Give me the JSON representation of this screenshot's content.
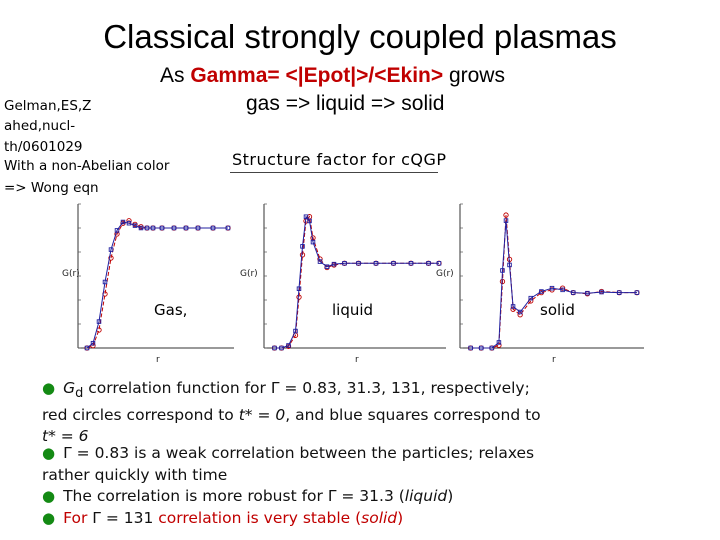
{
  "slide": {
    "title": "Classical strongly coupled plasmas",
    "subtitle_prefix": "As ",
    "subtitle_red": "Gamma= <|Epot|>/<Ekin>",
    "subtitle_suffix": " grows",
    "subtitle_line2": "gas => liquid => solid",
    "reference_lines": [
      "Gelman,ES,Z",
      "ahed,nucl-",
      "th/0601029",
      "With a non-Abelian color",
      "=> Wong eqn"
    ],
    "figure_title": "Structure factor for cQGP",
    "phase_labels": [
      "Gas,",
      "liquid",
      "solid"
    ],
    "bullets": {
      "b1_a": "G",
      "b1_sub": "d",
      "b1_b": " correlation function for Γ = 0.83, 31.3, 131, respectively;",
      "b1_c": "red circles correspond to ",
      "b1_d": "t* = 0",
      "b1_e": ", and blue squares correspond to",
      "b1_f": "t* = 6",
      "b2_a": "Γ = 0.83 is a weak correlation between the particles; relaxes",
      "b2_b": "rather quickly with time",
      "b3_a": "The correlation is more robust for Γ = 31.3 (",
      "b3_b": "liquid",
      "b3_c": ")",
      "b4_a": "For ",
      "b4_b": "Γ = 131",
      "b4_c": " correlation is very stable (",
      "b4_d": "solid",
      "b4_e": ")"
    },
    "plot_axis_labels": {
      "ylabel_left": "G(r)",
      "ylabel_mid": "G(r)",
      "ylabel_right": "G(r)",
      "xlabel": "r"
    },
    "colors": {
      "red": "#c00000",
      "blue": "#2020a0",
      "bullet": "#148a14"
    }
  },
  "chart_data": [
    {
      "type": "scatter",
      "title": "",
      "xlabel": "r",
      "ylabel": "G(r)",
      "series": [
        {
          "name": "",
          "color": "#c00000",
          "x": [
            0.3,
            0.5,
            0.7,
            0.9,
            1.1,
            1.3,
            1.5,
            1.7,
            1.9,
            2.1,
            2.3,
            2.5,
            2.8,
            3.2,
            3.6,
            4.0,
            4.5,
            5.0
          ],
          "y": [
            0.0,
            0.02,
            0.15,
            0.45,
            0.75,
            0.95,
            1.04,
            1.06,
            1.03,
            1.01,
            1.0,
            1.0,
            1.0,
            1.0,
            1.0,
            1.0,
            1.0,
            1.0
          ]
        },
        {
          "name": "",
          "color": "#2020a0",
          "x": [
            0.3,
            0.5,
            0.7,
            0.9,
            1.1,
            1.3,
            1.5,
            1.7,
            1.9,
            2.1,
            2.3,
            2.5,
            2.8,
            3.2,
            3.6,
            4.0,
            4.5,
            5.0
          ],
          "y": [
            0.0,
            0.04,
            0.22,
            0.55,
            0.82,
            0.98,
            1.05,
            1.04,
            1.02,
            1.0,
            1.0,
            1.0,
            1.0,
            1.0,
            1.0,
            1.0,
            1.0,
            1.0
          ]
        }
      ]
    },
    {
      "type": "scatter",
      "title": "",
      "xlabel": "r",
      "ylabel": "G(r)",
      "series": [
        {
          "name": "",
          "color": "#c00000",
          "x": [
            0.3,
            0.5,
            0.7,
            0.9,
            1.0,
            1.1,
            1.2,
            1.3,
            1.4,
            1.6,
            1.8,
            2.0,
            2.3,
            2.7,
            3.2,
            3.7,
            4.2,
            4.7,
            5.0
          ],
          "y": [
            0.0,
            0.0,
            0.02,
            0.15,
            0.6,
            1.1,
            1.5,
            1.55,
            1.3,
            1.05,
            0.95,
            0.98,
            1.0,
            1.0,
            1.0,
            1.0,
            1.0,
            1.0,
            1.0
          ]
        },
        {
          "name": "",
          "color": "#2020a0",
          "x": [
            0.3,
            0.5,
            0.7,
            0.9,
            1.0,
            1.1,
            1.2,
            1.3,
            1.4,
            1.6,
            1.8,
            2.0,
            2.3,
            2.7,
            3.2,
            3.7,
            4.2,
            4.7,
            5.0
          ],
          "y": [
            0.0,
            0.0,
            0.03,
            0.2,
            0.7,
            1.2,
            1.55,
            1.5,
            1.25,
            1.02,
            0.96,
            0.99,
            1.0,
            1.0,
            1.0,
            1.0,
            1.0,
            1.0,
            1.0
          ]
        }
      ]
    },
    {
      "type": "scatter",
      "title": "",
      "xlabel": "r",
      "ylabel": "G(r)",
      "series": [
        {
          "name": "",
          "color": "#c00000",
          "x": [
            0.3,
            0.6,
            0.9,
            1.1,
            1.2,
            1.3,
            1.4,
            1.5,
            1.7,
            2.0,
            2.3,
            2.6,
            2.9,
            3.2,
            3.6,
            4.0,
            4.5,
            5.0
          ],
          "y": [
            0.0,
            0.0,
            0.0,
            0.05,
            1.2,
            2.4,
            1.6,
            0.7,
            0.6,
            0.85,
            1.0,
            1.05,
            1.08,
            1.0,
            0.98,
            1.02,
            1.0,
            1.0
          ]
        },
        {
          "name": "",
          "color": "#2020a0",
          "x": [
            0.3,
            0.6,
            0.9,
            1.1,
            1.2,
            1.3,
            1.4,
            1.5,
            1.7,
            2.0,
            2.3,
            2.6,
            2.9,
            3.2,
            3.6,
            4.0,
            4.5,
            5.0
          ],
          "y": [
            0.0,
            0.0,
            0.0,
            0.1,
            1.4,
            2.3,
            1.5,
            0.75,
            0.65,
            0.9,
            1.02,
            1.08,
            1.05,
            1.0,
            0.99,
            1.01,
            1.0,
            1.0
          ]
        }
      ]
    }
  ]
}
